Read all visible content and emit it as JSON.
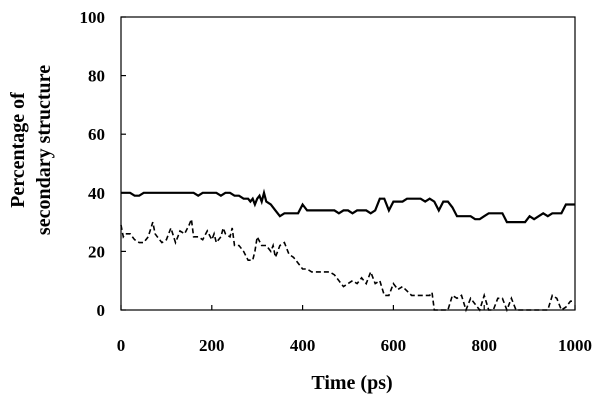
{
  "chart_data": {
    "type": "line",
    "title": "",
    "xlabel": "Time (ps)",
    "ylabel_lines": [
      "Percentage of",
      "secondary structure"
    ],
    "xlim": [
      0,
      1000
    ],
    "ylim": [
      0,
      100
    ],
    "xticks": [
      0,
      200,
      400,
      600,
      800,
      1000
    ],
    "yticks": [
      0,
      20,
      40,
      60,
      80,
      100
    ],
    "grid": false,
    "legend": "none",
    "series": [
      {
        "style": "solid",
        "color": "#000000",
        "x": [
          0,
          10,
          20,
          30,
          40,
          50,
          60,
          80,
          100,
          120,
          140,
          160,
          170,
          180,
          190,
          200,
          210,
          220,
          230,
          240,
          250,
          260,
          270,
          280,
          285,
          290,
          295,
          300,
          305,
          310,
          315,
          320,
          330,
          340,
          350,
          360,
          370,
          380,
          390,
          400,
          410,
          420,
          440,
          460,
          470,
          480,
          490,
          500,
          510,
          520,
          530,
          540,
          550,
          560,
          570,
          580,
          590,
          600,
          610,
          620,
          630,
          640,
          650,
          660,
          670,
          680,
          690,
          700,
          710,
          720,
          730,
          740,
          750,
          760,
          770,
          780,
          790,
          800,
          810,
          820,
          830,
          840,
          850,
          860,
          870,
          880,
          890,
          900,
          910,
          920,
          930,
          940,
          950,
          960,
          970,
          980,
          990,
          1000
        ],
        "y": [
          40,
          40,
          40,
          39,
          39,
          40,
          40,
          40,
          40,
          40,
          40,
          40,
          39,
          40,
          40,
          40,
          40,
          39,
          40,
          40,
          39,
          39,
          38,
          38,
          37,
          38,
          36,
          38,
          39,
          37,
          40,
          37,
          36,
          34,
          32,
          33,
          33,
          33,
          33,
          36,
          34,
          34,
          34,
          34,
          34,
          33,
          34,
          34,
          33,
          34,
          34,
          34,
          33,
          34,
          38,
          38,
          34,
          37,
          37,
          37,
          38,
          38,
          38,
          38,
          37,
          38,
          37,
          34,
          37,
          37,
          35,
          32,
          32,
          32,
          32,
          31,
          31,
          32,
          33,
          33,
          33,
          33,
          30,
          30,
          30,
          30,
          30,
          32,
          31,
          32,
          33,
          32,
          33,
          33,
          33,
          36,
          36,
          36
        ]
      },
      {
        "style": "dashed",
        "color": "#000000",
        "x": [
          0,
          5,
          10,
          20,
          30,
          40,
          50,
          60,
          70,
          75,
          80,
          90,
          100,
          110,
          120,
          125,
          130,
          140,
          150,
          155,
          160,
          170,
          180,
          190,
          200,
          205,
          210,
          220,
          225,
          230,
          240,
          245,
          250,
          260,
          270,
          280,
          290,
          295,
          300,
          310,
          320,
          330,
          335,
          340,
          350,
          360,
          370,
          380,
          390,
          400,
          410,
          420,
          440,
          460,
          470,
          480,
          490,
          500,
          510,
          520,
          530,
          540,
          550,
          560,
          570,
          580,
          590,
          600,
          610,
          620,
          640,
          660,
          680,
          685,
          690,
          700,
          710,
          720,
          730,
          740,
          750,
          760,
          770,
          780,
          790,
          800,
          810,
          820,
          830,
          840,
          850,
          860,
          870,
          880,
          900,
          920,
          940,
          950,
          960,
          970,
          980,
          990,
          1000
        ],
        "y": [
          29,
          25,
          26,
          26,
          24,
          23,
          23,
          25,
          30,
          26,
          25,
          23,
          24,
          28,
          23,
          25,
          27,
          26,
          29,
          31,
          25,
          25,
          24,
          27,
          24,
          26,
          23,
          25,
          28,
          26,
          25,
          28,
          22,
          22,
          20,
          17,
          17,
          20,
          25,
          22,
          22,
          20,
          22,
          18,
          22,
          23,
          19,
          18,
          16,
          14,
          14,
          13,
          13,
          13,
          12,
          10,
          8,
          9,
          10,
          9,
          11,
          9,
          13,
          9,
          10,
          5,
          5,
          9,
          7,
          8,
          5,
          5,
          5,
          6,
          0,
          0,
          0,
          0,
          5,
          4,
          5,
          0,
          4,
          2,
          0,
          5,
          0,
          0,
          4,
          4,
          0,
          4,
          0,
          0,
          0,
          0,
          0,
          5,
          4,
          0,
          1,
          3,
          3
        ]
      }
    ]
  }
}
